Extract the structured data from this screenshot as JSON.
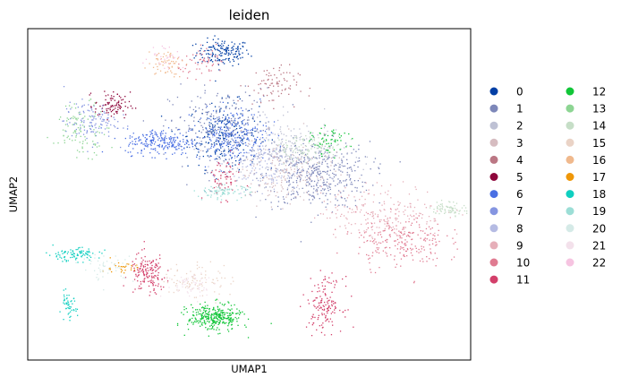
{
  "chart_data": {
    "type": "scatter",
    "title": "leiden",
    "xlabel": "UMAP1",
    "ylabel": "UMAP2",
    "grid": false,
    "legend_placement": "right",
    "series": [
      {
        "name": "0",
        "color": "#023fa5"
      },
      {
        "name": "1",
        "color": "#7d87b9"
      },
      {
        "name": "2",
        "color": "#bec1d4"
      },
      {
        "name": "3",
        "color": "#d6bcc0"
      },
      {
        "name": "4",
        "color": "#bb7784"
      },
      {
        "name": "5",
        "color": "#8e063b"
      },
      {
        "name": "6",
        "color": "#4a6fe3"
      },
      {
        "name": "7",
        "color": "#8595e1"
      },
      {
        "name": "8",
        "color": "#b5bbe3"
      },
      {
        "name": "9",
        "color": "#e6afb9"
      },
      {
        "name": "10",
        "color": "#e07b91"
      },
      {
        "name": "11",
        "color": "#d33f6a"
      },
      {
        "name": "12",
        "color": "#11c638"
      },
      {
        "name": "13",
        "color": "#8dd593"
      },
      {
        "name": "14",
        "color": "#c6dec7"
      },
      {
        "name": "15",
        "color": "#ead3c6"
      },
      {
        "name": "16",
        "color": "#f0b98d"
      },
      {
        "name": "17",
        "color": "#ef9708"
      },
      {
        "name": "18",
        "color": "#0fcfc0"
      },
      {
        "name": "19",
        "color": "#9cded6"
      },
      {
        "name": "20",
        "color": "#d5eae7"
      },
      {
        "name": "21",
        "color": "#f3e1eb"
      },
      {
        "name": "22",
        "color": "#f6c4e1"
      }
    ],
    "clusters": [
      {
        "label": "0",
        "x": 0.44,
        "y": 0.93,
        "sx": 0.03,
        "sy": 0.02,
        "n": 160
      },
      {
        "label": "0",
        "x": 0.44,
        "y": 0.68,
        "sx": 0.04,
        "sy": 0.05,
        "n": 220
      },
      {
        "label": "1",
        "x": 0.65,
        "y": 0.56,
        "sx": 0.06,
        "sy": 0.05,
        "n": 420
      },
      {
        "label": "1",
        "x": 0.44,
        "y": 0.7,
        "sx": 0.06,
        "sy": 0.06,
        "n": 260
      },
      {
        "label": "2",
        "x": 0.6,
        "y": 0.63,
        "sx": 0.06,
        "sy": 0.05,
        "n": 220
      },
      {
        "label": "3",
        "x": 0.57,
        "y": 0.57,
        "sx": 0.06,
        "sy": 0.05,
        "n": 180
      },
      {
        "label": "4",
        "x": 0.55,
        "y": 0.83,
        "sx": 0.03,
        "sy": 0.03,
        "n": 80
      },
      {
        "label": "5",
        "x": 0.19,
        "y": 0.77,
        "sx": 0.02,
        "sy": 0.02,
        "n": 90
      },
      {
        "label": "6",
        "x": 0.3,
        "y": 0.66,
        "sx": 0.04,
        "sy": 0.02,
        "n": 220
      },
      {
        "label": "6",
        "x": 0.46,
        "y": 0.68,
        "sx": 0.04,
        "sy": 0.04,
        "n": 220
      },
      {
        "label": "7",
        "x": 0.14,
        "y": 0.72,
        "sx": 0.03,
        "sy": 0.03,
        "n": 120
      },
      {
        "label": "8",
        "x": 0.52,
        "y": 0.59,
        "sx": 0.05,
        "sy": 0.04,
        "n": 150
      },
      {
        "label": "9",
        "x": 0.8,
        "y": 0.45,
        "sx": 0.07,
        "sy": 0.04,
        "n": 200
      },
      {
        "label": "10",
        "x": 0.84,
        "y": 0.36,
        "sx": 0.05,
        "sy": 0.04,
        "n": 230
      },
      {
        "label": "10",
        "x": 0.4,
        "y": 0.9,
        "sx": 0.03,
        "sy": 0.02,
        "n": 60
      },
      {
        "label": "11",
        "x": 0.27,
        "y": 0.26,
        "sx": 0.02,
        "sy": 0.03,
        "n": 160
      },
      {
        "label": "11",
        "x": 0.67,
        "y": 0.17,
        "sx": 0.02,
        "sy": 0.04,
        "n": 150
      },
      {
        "label": "11",
        "x": 0.44,
        "y": 0.55,
        "sx": 0.02,
        "sy": 0.03,
        "n": 60
      },
      {
        "label": "12",
        "x": 0.42,
        "y": 0.13,
        "sx": 0.03,
        "sy": 0.02,
        "n": 320
      },
      {
        "label": "12",
        "x": 0.68,
        "y": 0.66,
        "sx": 0.02,
        "sy": 0.02,
        "n": 60
      },
      {
        "label": "13",
        "x": 0.12,
        "y": 0.7,
        "sx": 0.03,
        "sy": 0.04,
        "n": 100
      },
      {
        "label": "14",
        "x": 0.63,
        "y": 0.64,
        "sx": 0.04,
        "sy": 0.02,
        "n": 100
      },
      {
        "label": "14",
        "x": 0.95,
        "y": 0.46,
        "sx": 0.02,
        "sy": 0.01,
        "n": 70
      },
      {
        "label": "15",
        "x": 0.38,
        "y": 0.24,
        "sx": 0.04,
        "sy": 0.03,
        "n": 90
      },
      {
        "label": "16",
        "x": 0.31,
        "y": 0.9,
        "sx": 0.02,
        "sy": 0.02,
        "n": 60
      },
      {
        "label": "17",
        "x": 0.21,
        "y": 0.28,
        "sx": 0.02,
        "sy": 0.01,
        "n": 30
      },
      {
        "label": "18",
        "x": 0.1,
        "y": 0.32,
        "sx": 0.03,
        "sy": 0.01,
        "n": 90
      },
      {
        "label": "18",
        "x": 0.09,
        "y": 0.16,
        "sx": 0.01,
        "sy": 0.02,
        "n": 50
      },
      {
        "label": "19",
        "x": 0.44,
        "y": 0.51,
        "sx": 0.03,
        "sy": 0.01,
        "n": 80
      },
      {
        "label": "20",
        "x": 0.18,
        "y": 0.28,
        "sx": 0.03,
        "sy": 0.02,
        "n": 50
      },
      {
        "label": "21",
        "x": 0.37,
        "y": 0.23,
        "sx": 0.03,
        "sy": 0.02,
        "n": 60
      },
      {
        "label": "22",
        "x": 0.31,
        "y": 0.92,
        "sx": 0.02,
        "sy": 0.02,
        "n": 30
      }
    ]
  }
}
